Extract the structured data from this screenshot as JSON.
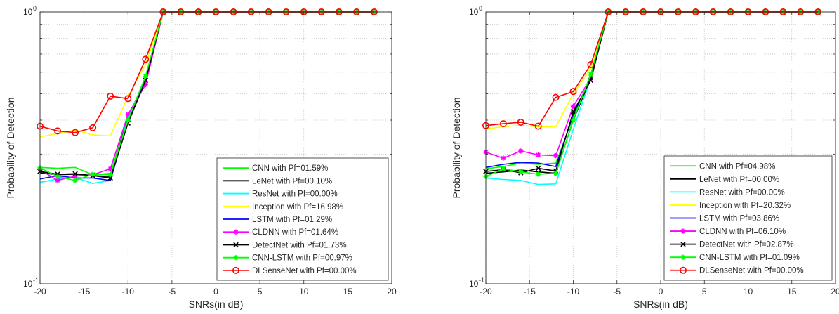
{
  "chart_data": [
    {
      "type": "line",
      "xlabel": "SNRs(in dB)",
      "ylabel": "Probability of Detection",
      "xlim": [
        -20,
        20
      ],
      "ylim": [
        0.1,
        1
      ],
      "yscale": "log",
      "grid": true,
      "legend_position": "bottom-right",
      "x_ticks": [
        "-20",
        "-15",
        "-10",
        "-5",
        "0",
        "5",
        "10",
        "15",
        "20"
      ],
      "y_ticks": [
        "10",
        "10"
      ],
      "y_tick_exponents": [
        "-1",
        "0"
      ],
      "x": [
        -20,
        -18,
        -16,
        -14,
        -12,
        -10,
        -8,
        -6,
        -4,
        -2,
        0,
        2,
        4,
        6,
        8,
        10,
        12,
        14,
        16,
        18
      ],
      "series": [
        {
          "name": "CNN with Pf=01.59%",
          "color": "#00ff00",
          "marker": "none",
          "values": [
            0.268,
            0.266,
            0.268,
            0.252,
            0.255,
            0.41,
            0.57,
            1,
            1,
            1,
            1,
            1,
            1,
            1,
            1,
            1,
            1,
            1,
            1,
            1
          ]
        },
        {
          "name": "LeNet with Pf=00.10%",
          "color": "#000000",
          "marker": "none",
          "values": [
            0.256,
            0.252,
            0.253,
            0.25,
            0.248,
            0.41,
            0.56,
            1,
            1,
            1,
            1,
            1,
            1,
            1,
            1,
            1,
            1,
            1,
            1,
            1
          ]
        },
        {
          "name": "ResNet with Pf=00.00%",
          "color": "#00ffff",
          "marker": "none",
          "values": [
            0.236,
            0.243,
            0.246,
            0.234,
            0.24,
            0.41,
            0.56,
            1,
            1,
            1,
            1,
            1,
            1,
            1,
            1,
            1,
            1,
            1,
            1,
            1
          ]
        },
        {
          "name": "Inception with Pf=16.98%",
          "color": "#ffff00",
          "marker": "none",
          "values": [
            0.347,
            0.357,
            0.368,
            0.353,
            0.35,
            0.49,
            0.64,
            1,
            1,
            1,
            1,
            1,
            1,
            1,
            1,
            1,
            1,
            1,
            1,
            1
          ]
        },
        {
          "name": "LSTM with Pf=01.29%",
          "color": "#0000ff",
          "marker": "none",
          "values": [
            0.243,
            0.25,
            0.245,
            0.245,
            0.24,
            0.4,
            0.56,
            1,
            1,
            1,
            1,
            1,
            1,
            1,
            1,
            1,
            1,
            1,
            1,
            1
          ]
        },
        {
          "name": "CLDNN with Pf=01.64%",
          "color": "#ff00ff",
          "marker": "asterisk",
          "values": [
            0.263,
            0.24,
            0.249,
            0.252,
            0.265,
            0.42,
            0.54,
            1,
            1,
            1,
            1,
            1,
            1,
            1,
            1,
            1,
            1,
            1,
            1,
            1
          ]
        },
        {
          "name": "DetectNet with Pf=01.73%",
          "color": "#000000",
          "marker": "x",
          "values": [
            0.259,
            0.253,
            0.254,
            0.25,
            0.245,
            0.39,
            0.56,
            1,
            1,
            1,
            1,
            1,
            1,
            1,
            1,
            1,
            1,
            1,
            1,
            1
          ]
        },
        {
          "name": "CNN-LSTM with Pf=00.97%",
          "color": "#00ff00",
          "marker": "asterisk",
          "values": [
            0.267,
            0.248,
            0.24,
            0.253,
            0.252,
            0.4,
            0.58,
            1,
            1,
            1,
            1,
            1,
            1,
            1,
            1,
            1,
            1,
            1,
            1,
            1
          ]
        },
        {
          "name": "DLSenseNet with Pf=00.00%",
          "color": "#ff0000",
          "marker": "circle",
          "values": [
            0.38,
            0.365,
            0.36,
            0.375,
            0.49,
            0.48,
            0.67,
            1,
            1,
            1,
            1,
            1,
            1,
            1,
            1,
            1,
            1,
            1,
            1,
            1
          ]
        }
      ]
    },
    {
      "type": "line",
      "xlabel": "SNRs(in dB)",
      "ylabel": "Probability of Detection",
      "xlim": [
        -20,
        20
      ],
      "ylim": [
        0.1,
        1
      ],
      "yscale": "log",
      "grid": true,
      "legend_position": "bottom-right",
      "x_ticks": [
        "-20",
        "-15",
        "-10",
        "-5",
        "0",
        "5",
        "10",
        "15",
        "20"
      ],
      "y_ticks": [
        "10",
        "10"
      ],
      "y_tick_exponents": [
        "-1",
        "0"
      ],
      "x": [
        -20,
        -18,
        -16,
        -14,
        -12,
        -10,
        -8,
        -6,
        -4,
        -2,
        0,
        2,
        4,
        6,
        8,
        10,
        12,
        14,
        16,
        18
      ],
      "series": [
        {
          "name": "CNN with Pf=04.98%",
          "color": "#00ff00",
          "marker": "none",
          "values": [
            0.265,
            0.27,
            0.278,
            0.275,
            0.278,
            0.41,
            0.58,
            1,
            1,
            1,
            1,
            1,
            1,
            1,
            1,
            1,
            1,
            1,
            1,
            1
          ]
        },
        {
          "name": "LeNet with Pf=00.00%",
          "color": "#000000",
          "marker": "none",
          "values": [
            0.255,
            0.258,
            0.262,
            0.258,
            0.255,
            0.4,
            0.57,
            1,
            1,
            1,
            1,
            1,
            1,
            1,
            1,
            1,
            1,
            1,
            1,
            1
          ]
        },
        {
          "name": "ResNet with Pf=00.00%",
          "color": "#00ffff",
          "marker": "none",
          "values": [
            0.245,
            0.242,
            0.24,
            0.232,
            0.233,
            0.37,
            0.57,
            1,
            1,
            1,
            1,
            1,
            1,
            1,
            1,
            1,
            1,
            1,
            1,
            1
          ]
        },
        {
          "name": "Inception with Pf=20.32%",
          "color": "#ffff00",
          "marker": "none",
          "values": [
            0.372,
            0.378,
            0.383,
            0.378,
            0.378,
            0.5,
            0.62,
            1,
            1,
            1,
            1,
            1,
            1,
            1,
            1,
            1,
            1,
            1,
            1,
            1
          ]
        },
        {
          "name": "LSTM with Pf=03.86%",
          "color": "#0000ff",
          "marker": "none",
          "values": [
            0.268,
            0.275,
            0.28,
            0.278,
            0.27,
            0.42,
            0.57,
            1,
            1,
            1,
            1,
            1,
            1,
            1,
            1,
            1,
            1,
            1,
            1,
            1
          ]
        },
        {
          "name": "CLDNN with Pf=06.10%",
          "color": "#ff00ff",
          "marker": "asterisk",
          "values": [
            0.305,
            0.29,
            0.308,
            0.298,
            0.296,
            0.45,
            0.57,
            1,
            1,
            1,
            1,
            1,
            1,
            1,
            1,
            1,
            1,
            1,
            1,
            1
          ]
        },
        {
          "name": "DetectNet with Pf=02.87%",
          "color": "#000000",
          "marker": "x",
          "values": [
            0.259,
            0.263,
            0.256,
            0.266,
            0.26,
            0.43,
            0.56,
            1,
            1,
            1,
            1,
            1,
            1,
            1,
            1,
            1,
            1,
            1,
            1,
            1
          ]
        },
        {
          "name": "CNN-LSTM with Pf=01.09%",
          "color": "#00ff00",
          "marker": "asterisk",
          "values": [
            0.248,
            0.265,
            0.258,
            0.253,
            0.255,
            0.4,
            0.59,
            1,
            1,
            1,
            1,
            1,
            1,
            1,
            1,
            1,
            1,
            1,
            1,
            1
          ]
        },
        {
          "name": "DLSenseNet with Pf=00.00%",
          "color": "#ff0000",
          "marker": "circle",
          "values": [
            0.382,
            0.388,
            0.393,
            0.38,
            0.485,
            0.51,
            0.64,
            1,
            1,
            1,
            1,
            1,
            1,
            1,
            1,
            1,
            1,
            1,
            1,
            1
          ]
        }
      ]
    }
  ]
}
